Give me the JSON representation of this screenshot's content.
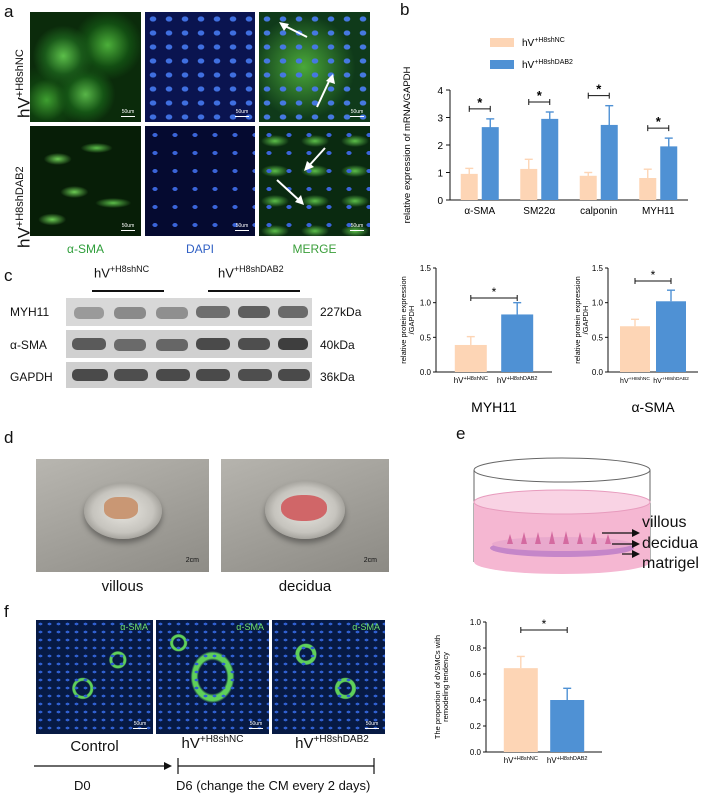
{
  "panel_labels": {
    "a": "a",
    "b": "b",
    "c": "c",
    "d": "d",
    "e": "e",
    "f": "f"
  },
  "panel_a": {
    "row_labels": [
      {
        "base": "hV",
        "sup": "+H8shNC"
      },
      {
        "base": "hV",
        "sup": "+H8shDAB2"
      }
    ],
    "column_labels": [
      "α-SMA",
      "DAPI",
      "MERGE"
    ],
    "column_colors": [
      "#2e9e3a",
      "#2f5fc4",
      "#3a9e3a"
    ],
    "scale_bar": "50um"
  },
  "chart_data": [
    {
      "id": "b",
      "type": "bar",
      "categories": [
        "α-SMA",
        "SM22α",
        "calponin",
        "MYH11"
      ],
      "series": [
        {
          "name": "hV+H8shNC",
          "values": [
            0.95,
            1.13,
            0.88,
            0.8
          ],
          "errors": [
            0.2,
            0.35,
            0.12,
            0.32
          ],
          "color": "#fdd5b5"
        },
        {
          "name": "hV+H8shDAB2",
          "values": [
            2.65,
            2.95,
            2.73,
            1.95
          ],
          "errors": [
            0.3,
            0.25,
            0.7,
            0.3
          ],
          "color": "#4f91d4"
        }
      ],
      "ylabel": "relative expression of mRNA/GAPDH",
      "ylim": [
        0,
        4
      ],
      "yticks": [
        0,
        1,
        2,
        3,
        4
      ],
      "significance": "*",
      "legend": [
        {
          "base": "hV",
          "sup": "+H8shNC"
        },
        {
          "base": "hV",
          "sup": "+H8shDAB2"
        }
      ]
    },
    {
      "id": "c-myh11",
      "type": "bar",
      "title": "MYH11",
      "categories": [
        "hV+H8shNC",
        "hV+H8shDAB2"
      ],
      "category_labels": [
        {
          "base": "hV",
          "sup": "+H8shNC"
        },
        {
          "base": "hV",
          "sup": "+H8shDAB2"
        }
      ],
      "values": [
        0.39,
        0.83
      ],
      "errors": [
        0.12,
        0.17
      ],
      "colors": [
        "#fdd5b5",
        "#4f91d4"
      ],
      "ylabel": "relative protein expression\n/GAPDH",
      "ylim": [
        0,
        1.5
      ],
      "yticks": [
        "0.0",
        "0.5",
        "1.0",
        "1.5"
      ],
      "significance": "*"
    },
    {
      "id": "c-asma",
      "type": "bar",
      "title": "α-SMA",
      "categories": [
        "hV+H8shNC",
        "hV+H8shDAB2"
      ],
      "category_labels": [
        {
          "base": "hV",
          "sup": "+H8shNC"
        },
        {
          "base": "hV",
          "sup": "+H8shDAB2"
        }
      ],
      "values": [
        0.66,
        1.02
      ],
      "errors": [
        0.1,
        0.16
      ],
      "colors": [
        "#fdd5b5",
        "#4f91d4"
      ],
      "ylabel": "relative protein expression\n/GAPDH",
      "ylim": [
        0,
        1.5
      ],
      "yticks": [
        "0.0",
        "0.5",
        "1.0",
        "1.5"
      ],
      "significance": "*"
    },
    {
      "id": "f",
      "type": "bar",
      "categories": [
        "hV+H8shNC",
        "hV+H8shDAB2"
      ],
      "category_labels": [
        {
          "base": "hV",
          "sup": "+H8shNC"
        },
        {
          "base": "hV",
          "sup": "+H8shDAB2"
        }
      ],
      "values": [
        0.645,
        0.4
      ],
      "errors": [
        0.09,
        0.09
      ],
      "colors": [
        "#fdd5b5",
        "#4f91d4"
      ],
      "ylabel": "The proportion of dVSMCs with\nremodeling tendency",
      "ylim": [
        0,
        1.0
      ],
      "yticks": [
        "0.0",
        "0.2",
        "0.4",
        "0.6",
        "0.8",
        "1.0"
      ],
      "significance": "*"
    }
  ],
  "panel_c": {
    "groups": [
      {
        "base": "hV",
        "sup": "+H8shNC"
      },
      {
        "base": "hV",
        "sup": "+H8shDAB2"
      }
    ],
    "rows": [
      {
        "name": "MYH11",
        "size": "227kDa"
      },
      {
        "name": "α-SMA",
        "size": "40kDa"
      },
      {
        "name": "GAPDH",
        "size": "36kDa"
      }
    ]
  },
  "panel_d": {
    "labels": [
      "villous",
      "decidua"
    ],
    "scale": "2cm"
  },
  "panel_e": {
    "labels": [
      "villous",
      "decidua",
      "matrigel"
    ]
  },
  "panel_f": {
    "image_labels": [
      "α-SMA",
      "α-SMA",
      "α-SMA"
    ],
    "scale": "50um",
    "conditions": [
      {
        "base": "Control",
        "sup": ""
      },
      {
        "base": "hV",
        "sup": "+H8shNC"
      },
      {
        "base": "hV",
        "sup": "+H8shDAB2"
      }
    ],
    "timeline": [
      "D0",
      "D6 (change the CM every 2 days)"
    ]
  }
}
